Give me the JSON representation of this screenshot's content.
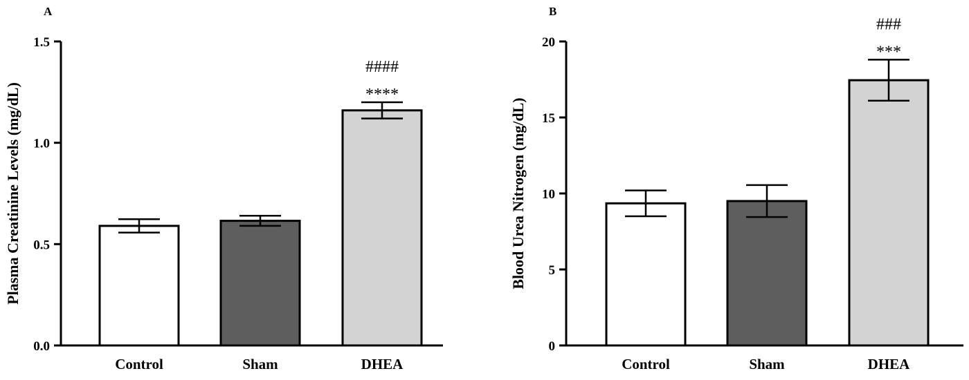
{
  "chart_data": [
    {
      "type": "bar",
      "panel_label": "A",
      "title": "",
      "xlabel": "",
      "ylabel": "Plasma Creatinine Levels (mg/dL)",
      "ylim": [
        0,
        1.5
      ],
      "yticks": [
        "0.0",
        "0.5",
        "1.0",
        "1.5"
      ],
      "ytick_values": [
        0,
        0.5,
        1.0,
        1.5
      ],
      "categories": [
        "Control",
        "Sham",
        "DHEA"
      ],
      "values": [
        0.59,
        0.615,
        1.16
      ],
      "error": [
        0.033,
        0.025,
        0.04
      ],
      "colors": [
        "#ffffff",
        "#5e5e5e",
        "#d3d3d3"
      ],
      "annotations": [
        {
          "category": "DHEA",
          "stars": "****",
          "hashes": "####"
        }
      ],
      "grid": false,
      "legend": "none"
    },
    {
      "type": "bar",
      "panel_label": "B",
      "title": "",
      "xlabel": "",
      "ylabel": "Blood Urea Nitrogen (mg/dL)",
      "ylim": [
        0,
        20
      ],
      "yticks": [
        "0",
        "5",
        "10",
        "15",
        "20"
      ],
      "ytick_values": [
        0,
        5,
        10,
        15,
        20
      ],
      "categories": [
        "Control",
        "Sham",
        "DHEA"
      ],
      "values": [
        9.35,
        9.5,
        17.45
      ],
      "error": [
        0.85,
        1.05,
        1.35
      ],
      "colors": [
        "#ffffff",
        "#5e5e5e",
        "#d3d3d3"
      ],
      "annotations": [
        {
          "category": "DHEA",
          "stars": "***",
          "hashes": "###"
        }
      ],
      "grid": false,
      "legend": "none"
    }
  ]
}
